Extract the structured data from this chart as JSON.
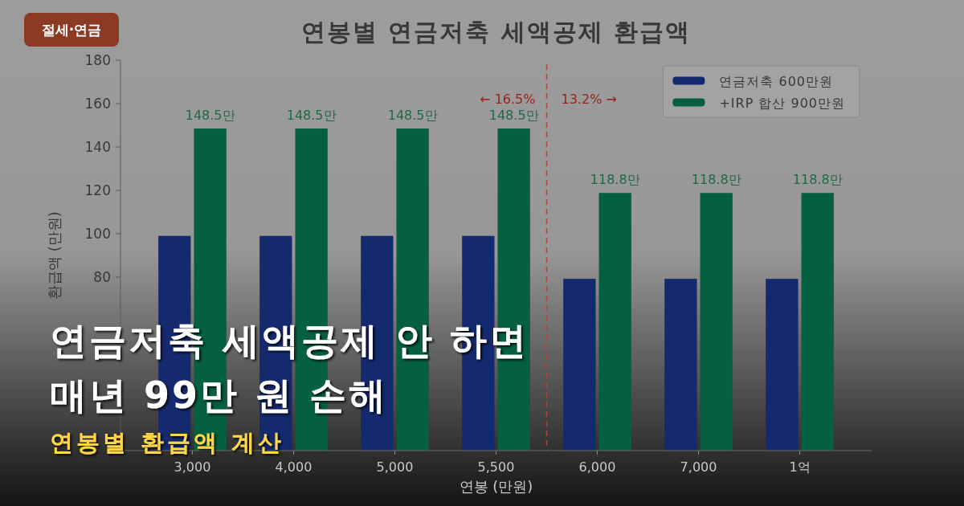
{
  "chart_data": {
    "type": "bar",
    "title": "연금저축 세액공제 안 하면\n매년 99만 원 손해",
    "subtitle": "연봉별 환급액 계산",
    "annotations": [
      "절세·연금",
      "연봉별 연금저축 세액공제 환급액",
      "← 16.5%",
      "13.2% →"
    ],
    "xlabel": "연봉 (만원)",
    "ylabel": "환급액 (만원)",
    "categories": [
      "3,000",
      "4,000",
      "5,000",
      "5,500",
      "6,000",
      "7,000",
      "1억"
    ],
    "series": [
      {
        "name": "연금저축 600만원",
        "color": "#15296f",
        "values": [
          99,
          99,
          99,
          99,
          79.2,
          79.2,
          79.2
        ]
      },
      {
        "name": "+IRP 합산 900만원",
        "color": "#05603f",
        "values": [
          148.5,
          148.5,
          148.5,
          148.5,
          118.8,
          118.8,
          118.8
        ],
        "value_labels": [
          "148.5만",
          "148.5만",
          "148.5만",
          "148.5만",
          "118.8만",
          "118.8만",
          "118.8만"
        ]
      }
    ],
    "ylim": [
      0,
      180
    ],
    "yticks": [
      80,
      100,
      120,
      140,
      160,
      180
    ],
    "legend": "top right"
  }
}
